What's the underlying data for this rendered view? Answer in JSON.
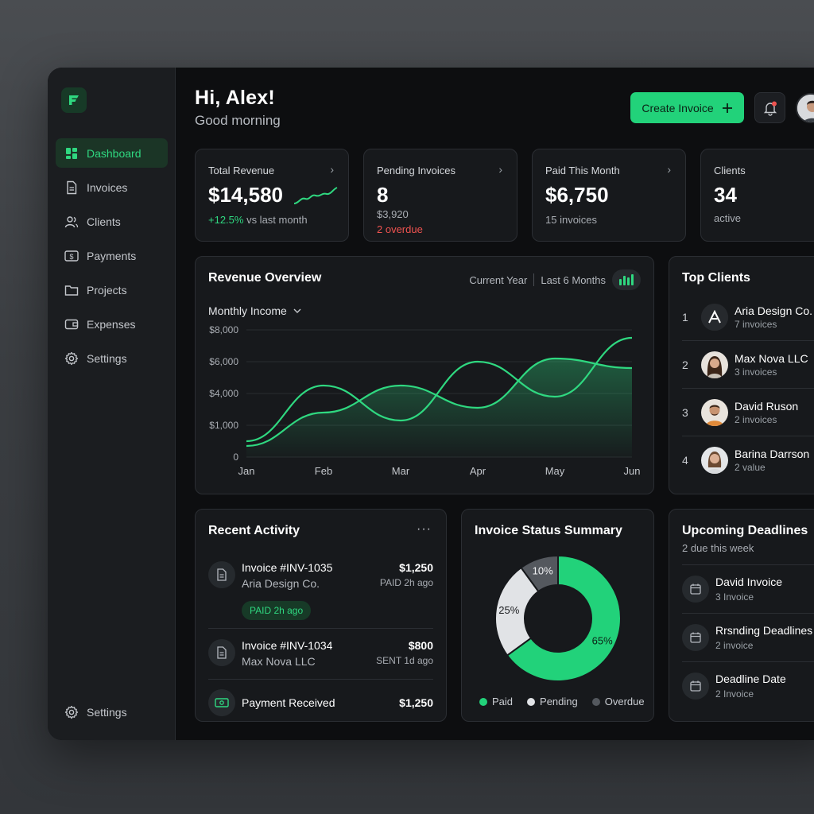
{
  "sidebar": {
    "items": [
      {
        "label": "Dashboard",
        "icon": "grid-icon",
        "active": true
      },
      {
        "label": "Invoices",
        "icon": "document-icon"
      },
      {
        "label": "Clients",
        "icon": "users-icon"
      },
      {
        "label": "Payments",
        "icon": "dollar-card-icon"
      },
      {
        "label": "Projects",
        "icon": "folder-icon"
      },
      {
        "label": "Expenses",
        "icon": "wallet-icon"
      },
      {
        "label": "Settings",
        "icon": "gear-icon"
      }
    ],
    "bottom": {
      "label": "Settings",
      "icon": "gear-icon"
    }
  },
  "header": {
    "greeting": "Hi, Alex!",
    "subgreeting": "Good morning",
    "create_label": "Create Invoice",
    "notification_dot_color": "#ef5350"
  },
  "stats": [
    {
      "label": "Total Revenue",
      "value": "$14,580",
      "change": "+12.5%",
      "change_suffix": " vs last month"
    },
    {
      "label": "Pending Invoices",
      "value": "8",
      "line1": "$3,920",
      "line2": "2 overdue"
    },
    {
      "label": "Paid This Month",
      "value": "$6,750",
      "line1": "15 invoices"
    },
    {
      "label": "Clients",
      "value": "34",
      "line1": "active"
    }
  ],
  "revenue": {
    "title": "Revenue Overview",
    "period_a": "Current Year",
    "period_b": "Last 6 Months",
    "dropdown": "Monthly Income"
  },
  "chart_data": {
    "type": "line",
    "x": [
      "Jan",
      "Feb",
      "Mar",
      "Apr",
      "May",
      "Jun"
    ],
    "ytick_labels": [
      "0",
      "$1,000",
      "$4,000",
      "$6,000",
      "$8,000"
    ],
    "ylim": [
      0,
      8000
    ],
    "grid": true,
    "series": [
      {
        "values": [
          1000,
          4500,
          2300,
          6000,
          3800,
          7500
        ],
        "color": "#2fd880",
        "fill": false
      },
      {
        "values": [
          700,
          2800,
          4500,
          3100,
          6200,
          5600
        ],
        "color": "#2fd880",
        "fill": true
      }
    ]
  },
  "top_clients": {
    "title": "Top Clients",
    "items": [
      {
        "rank": "1",
        "name": "Aria Design Co.",
        "sub": "7 invoices"
      },
      {
        "rank": "2",
        "name": "Max Nova LLC",
        "sub": "3 invoices"
      },
      {
        "rank": "3",
        "name": "David Ruson",
        "sub": "2 invoices"
      },
      {
        "rank": "4",
        "name": "Barina Darrson",
        "sub": "2 value"
      }
    ]
  },
  "activity": {
    "title": "Recent Activity",
    "more": "···",
    "items": [
      {
        "title": "Invoice #INV-1035",
        "sub": "Aria Design Co.",
        "amount": "$1,250",
        "meta": "PAID 2h ago",
        "pill": "PAID 2h ago"
      },
      {
        "title": "Invoice #INV-1034",
        "sub": "Max Nova LLC",
        "amount": "$800",
        "meta": "SENT 1d ago"
      },
      {
        "title": "Payment Received",
        "amount": "$1,250"
      }
    ]
  },
  "status_summary": {
    "title": "Invoice Status Summary",
    "donut": [
      {
        "label": "Paid",
        "value": 65,
        "text": "65%",
        "color": "#22d27a"
      },
      {
        "label": "Pending",
        "value": 25,
        "text": "25%",
        "color": "#e1e3e6"
      },
      {
        "label": "Overdue",
        "value": 10,
        "text": "10%",
        "color": "#54585e"
      }
    ]
  },
  "deadlines": {
    "title": "Upcoming Deadlines",
    "sub": "2 due this week",
    "items": [
      {
        "title": "David Invoice",
        "sub": "3 Invoice"
      },
      {
        "title": "Rrsnding Deadlines",
        "sub": "2 invoice"
      },
      {
        "title": "Deadline Date",
        "sub": "2 Invoice"
      }
    ]
  }
}
